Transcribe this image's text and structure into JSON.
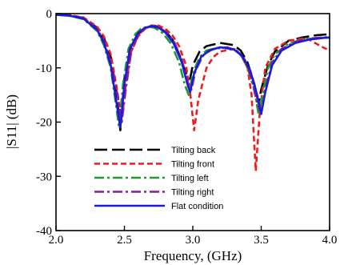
{
  "chart_data": {
    "type": "line",
    "title": "",
    "xlabel": "Frequency, (GHz)",
    "ylabel": "|S11| (dB)",
    "xlim": [
      2.0,
      4.0
    ],
    "ylim": [
      -40,
      0
    ],
    "xticks": [
      "2.0",
      "2.5",
      "3.0",
      "3.5",
      "4.0"
    ],
    "yticks": [
      "0",
      "-10",
      "-20",
      "-30",
      "-40"
    ],
    "grid": false,
    "legend_position": "bottom-center",
    "series": [
      {
        "name": "Tilting back",
        "color": "#000000",
        "style": "long-dash",
        "points": [
          [
            2.0,
            -0.2
          ],
          [
            2.1,
            -0.3
          ],
          [
            2.2,
            -0.8
          ],
          [
            2.3,
            -2.6
          ],
          [
            2.35,
            -4.5
          ],
          [
            2.4,
            -8
          ],
          [
            2.44,
            -14
          ],
          [
            2.47,
            -21.5
          ],
          [
            2.5,
            -12
          ],
          [
            2.55,
            -6
          ],
          [
            2.6,
            -3.8
          ],
          [
            2.65,
            -2.6
          ],
          [
            2.7,
            -2.2
          ],
          [
            2.75,
            -2.4
          ],
          [
            2.8,
            -3.2
          ],
          [
            2.85,
            -4.8
          ],
          [
            2.9,
            -7.5
          ],
          [
            2.95,
            -11
          ],
          [
            2.98,
            -12
          ],
          [
            3.0,
            -9.5
          ],
          [
            3.05,
            -7
          ],
          [
            3.1,
            -6
          ],
          [
            3.2,
            -5.4
          ],
          [
            3.3,
            -5.8
          ],
          [
            3.35,
            -6.8
          ],
          [
            3.4,
            -9
          ],
          [
            3.45,
            -13
          ],
          [
            3.48,
            -16.5
          ],
          [
            3.5,
            -14
          ],
          [
            3.55,
            -9.5
          ],
          [
            3.6,
            -7
          ],
          [
            3.7,
            -5
          ],
          [
            3.8,
            -4.4
          ],
          [
            3.9,
            -4
          ],
          [
            4.0,
            -3.8
          ]
        ]
      },
      {
        "name": "Tilting front",
        "color": "#ee1c1c",
        "style": "dash",
        "points": [
          [
            2.0,
            -0.2
          ],
          [
            2.1,
            -0.3
          ],
          [
            2.2,
            -0.7
          ],
          [
            2.3,
            -2.4
          ],
          [
            2.35,
            -4.2
          ],
          [
            2.4,
            -7.5
          ],
          [
            2.44,
            -13
          ],
          [
            2.48,
            -20
          ],
          [
            2.51,
            -13
          ],
          [
            2.55,
            -7
          ],
          [
            2.6,
            -4.2
          ],
          [
            2.65,
            -2.8
          ],
          [
            2.7,
            -2.2
          ],
          [
            2.75,
            -2.2
          ],
          [
            2.8,
            -2.8
          ],
          [
            2.85,
            -4
          ],
          [
            2.9,
            -6
          ],
          [
            2.95,
            -9.5
          ],
          [
            2.98,
            -14.5
          ],
          [
            3.01,
            -21.5
          ],
          [
            3.04,
            -16
          ],
          [
            3.1,
            -10
          ],
          [
            3.15,
            -8
          ],
          [
            3.2,
            -7
          ],
          [
            3.3,
            -6.5
          ],
          [
            3.35,
            -7.5
          ],
          [
            3.4,
            -10
          ],
          [
            3.43,
            -15
          ],
          [
            3.46,
            -29
          ],
          [
            3.49,
            -18
          ],
          [
            3.53,
            -10
          ],
          [
            3.6,
            -6.5
          ],
          [
            3.7,
            -5
          ],
          [
            3.8,
            -4.6
          ],
          [
            3.85,
            -4.8
          ],
          [
            3.9,
            -5.5
          ],
          [
            3.95,
            -6.2
          ],
          [
            4.0,
            -6.8
          ]
        ]
      },
      {
        "name": "Tilting left",
        "color": "#1f9a2e",
        "style": "dash-dot",
        "points": [
          [
            2.0,
            -0.2
          ],
          [
            2.1,
            -0.4
          ],
          [
            2.2,
            -1
          ],
          [
            2.3,
            -3.2
          ],
          [
            2.35,
            -5.8
          ],
          [
            2.4,
            -10
          ],
          [
            2.44,
            -17
          ],
          [
            2.46,
            -21
          ],
          [
            2.49,
            -13
          ],
          [
            2.53,
            -6.5
          ],
          [
            2.58,
            -3.8
          ],
          [
            2.62,
            -2.8
          ],
          [
            2.67,
            -2.4
          ],
          [
            2.72,
            -2.6
          ],
          [
            2.78,
            -3.6
          ],
          [
            2.84,
            -5.5
          ],
          [
            2.9,
            -9
          ],
          [
            2.94,
            -13
          ],
          [
            2.97,
            -15
          ],
          [
            3.0,
            -11
          ],
          [
            3.05,
            -8
          ],
          [
            3.1,
            -6.8
          ],
          [
            3.2,
            -6.2
          ],
          [
            3.3,
            -6.6
          ],
          [
            3.35,
            -7.5
          ],
          [
            3.4,
            -10
          ],
          [
            3.45,
            -14
          ],
          [
            3.48,
            -18.5
          ],
          [
            3.51,
            -15
          ],
          [
            3.55,
            -10
          ],
          [
            3.6,
            -7.5
          ],
          [
            3.7,
            -5.5
          ],
          [
            3.8,
            -4.8
          ],
          [
            3.9,
            -4.5
          ],
          [
            4.0,
            -4.4
          ]
        ]
      },
      {
        "name": "Tilting right",
        "color": "#8b1a9c",
        "style": "dash-dot",
        "points": [
          [
            2.0,
            -0.2
          ],
          [
            2.1,
            -0.3
          ],
          [
            2.2,
            -0.8
          ],
          [
            2.3,
            -2.8
          ],
          [
            2.35,
            -5
          ],
          [
            2.4,
            -9
          ],
          [
            2.45,
            -15
          ],
          [
            2.48,
            -20
          ],
          [
            2.51,
            -14
          ],
          [
            2.55,
            -7
          ],
          [
            2.6,
            -4
          ],
          [
            2.65,
            -2.7
          ],
          [
            2.7,
            -2.3
          ],
          [
            2.75,
            -2.5
          ],
          [
            2.8,
            -3.3
          ],
          [
            2.86,
            -5
          ],
          [
            2.92,
            -8.5
          ],
          [
            2.96,
            -12.5
          ],
          [
            2.99,
            -14
          ],
          [
            3.02,
            -10.5
          ],
          [
            3.08,
            -7.5
          ],
          [
            3.15,
            -6.5
          ],
          [
            3.25,
            -6.2
          ],
          [
            3.32,
            -6.8
          ],
          [
            3.38,
            -8.5
          ],
          [
            3.43,
            -12
          ],
          [
            3.47,
            -16.5
          ],
          [
            3.5,
            -18.5
          ],
          [
            3.53,
            -14
          ],
          [
            3.58,
            -9
          ],
          [
            3.65,
            -6.5
          ],
          [
            3.75,
            -5.2
          ],
          [
            3.85,
            -4.6
          ],
          [
            3.95,
            -4.4
          ],
          [
            4.0,
            -4.3
          ]
        ]
      },
      {
        "name": "Flat condition",
        "color": "#1a1adb",
        "style": "solid",
        "points": [
          [
            2.0,
            -0.2
          ],
          [
            2.1,
            -0.4
          ],
          [
            2.2,
            -0.9
          ],
          [
            2.3,
            -3
          ],
          [
            2.35,
            -5.4
          ],
          [
            2.4,
            -9.5
          ],
          [
            2.44,
            -16
          ],
          [
            2.47,
            -21
          ],
          [
            2.5,
            -13
          ],
          [
            2.54,
            -6.5
          ],
          [
            2.6,
            -3.6
          ],
          [
            2.65,
            -2.6
          ],
          [
            2.7,
            -2.3
          ],
          [
            2.75,
            -2.6
          ],
          [
            2.8,
            -3.5
          ],
          [
            2.86,
            -5.5
          ],
          [
            2.92,
            -9
          ],
          [
            2.96,
            -13
          ],
          [
            2.98,
            -14.5
          ],
          [
            3.01,
            -11
          ],
          [
            3.06,
            -8
          ],
          [
            3.12,
            -6.8
          ],
          [
            3.2,
            -6.2
          ],
          [
            3.3,
            -6.6
          ],
          [
            3.36,
            -7.8
          ],
          [
            3.42,
            -10.5
          ],
          [
            3.47,
            -15
          ],
          [
            3.5,
            -18.5
          ],
          [
            3.53,
            -14.5
          ],
          [
            3.58,
            -9.5
          ],
          [
            3.65,
            -6.8
          ],
          [
            3.75,
            -5.4
          ],
          [
            3.85,
            -4.8
          ],
          [
            3.95,
            -4.5
          ],
          [
            4.0,
            -4.4
          ]
        ]
      }
    ]
  }
}
